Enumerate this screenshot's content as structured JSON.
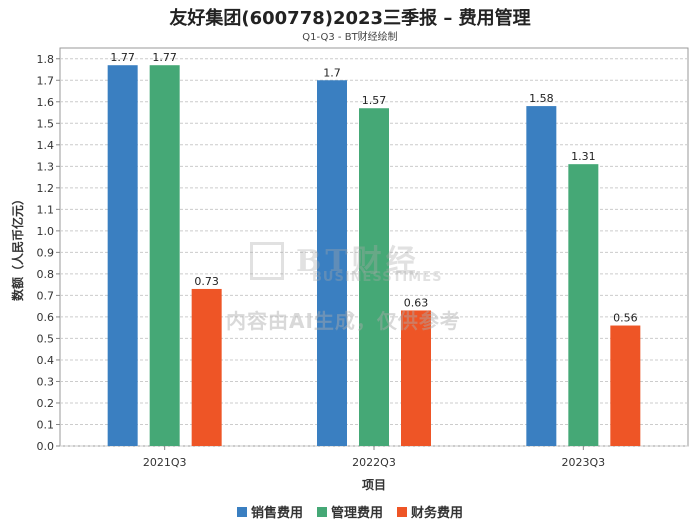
{
  "title": "友好集团(600778)2023三季报 – 费用管理",
  "subtitle": "Q1-Q3 - BT财经绘制",
  "watermark": {
    "brand": "BT财经",
    "brand_en": "BUSINESSTIMES",
    "note": "内容由AI生成，仅供参考"
  },
  "chart_data": {
    "type": "bar",
    "categories": [
      "2021Q3",
      "2022Q3",
      "2023Q3"
    ],
    "series": [
      {
        "name": "销售费用",
        "values": [
          1.77,
          1.7,
          1.58
        ],
        "color": "#3a7fc1"
      },
      {
        "name": "管理费用",
        "values": [
          1.77,
          1.57,
          1.31
        ],
        "color": "#45a876"
      },
      {
        "name": "财务费用",
        "values": [
          0.73,
          0.63,
          0.56
        ],
        "color": "#ee5526"
      }
    ],
    "xlabel": "项目",
    "ylabel": "数额（人民币亿元）",
    "ylim": [
      0,
      1.85
    ],
    "yticks": [
      0.0,
      0.1,
      0.2,
      0.3,
      0.4,
      0.5,
      0.6,
      0.7,
      0.8,
      0.9,
      1.0,
      1.1,
      1.2,
      1.3,
      1.4,
      1.5,
      1.6,
      1.7,
      1.8
    ],
    "grid": true,
    "legend": "bottom"
  }
}
